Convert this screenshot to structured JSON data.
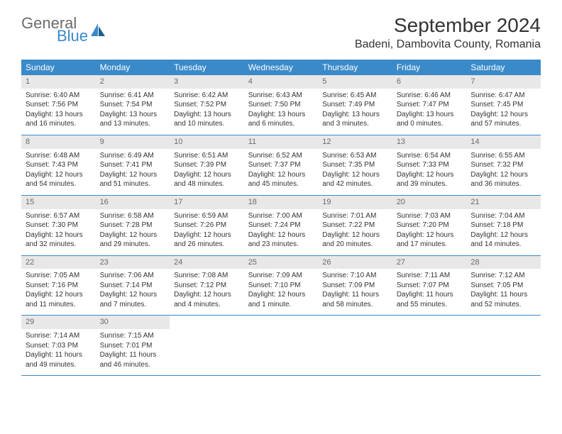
{
  "logo": {
    "text1": "General",
    "text2": "Blue"
  },
  "title": "September 2024",
  "subtitle": "Badeni, Dambovita County, Romania",
  "colors": {
    "header_bg": "#3a8ac9",
    "header_text": "#ffffff",
    "daynum_bg": "#e8e8e8",
    "daynum_text": "#6b6b6b",
    "body_text": "#333333",
    "border": "#3a8ac9"
  },
  "weekdays": [
    "Sunday",
    "Monday",
    "Tuesday",
    "Wednesday",
    "Thursday",
    "Friday",
    "Saturday"
  ],
  "weeks": [
    [
      {
        "n": "1",
        "sr": "6:40 AM",
        "ss": "7:56 PM",
        "dl": "13 hours and 16 minutes."
      },
      {
        "n": "2",
        "sr": "6:41 AM",
        "ss": "7:54 PM",
        "dl": "13 hours and 13 minutes."
      },
      {
        "n": "3",
        "sr": "6:42 AM",
        "ss": "7:52 PM",
        "dl": "13 hours and 10 minutes."
      },
      {
        "n": "4",
        "sr": "6:43 AM",
        "ss": "7:50 PM",
        "dl": "13 hours and 6 minutes."
      },
      {
        "n": "5",
        "sr": "6:45 AM",
        "ss": "7:49 PM",
        "dl": "13 hours and 3 minutes."
      },
      {
        "n": "6",
        "sr": "6:46 AM",
        "ss": "7:47 PM",
        "dl": "13 hours and 0 minutes."
      },
      {
        "n": "7",
        "sr": "6:47 AM",
        "ss": "7:45 PM",
        "dl": "12 hours and 57 minutes."
      }
    ],
    [
      {
        "n": "8",
        "sr": "6:48 AM",
        "ss": "7:43 PM",
        "dl": "12 hours and 54 minutes."
      },
      {
        "n": "9",
        "sr": "6:49 AM",
        "ss": "7:41 PM",
        "dl": "12 hours and 51 minutes."
      },
      {
        "n": "10",
        "sr": "6:51 AM",
        "ss": "7:39 PM",
        "dl": "12 hours and 48 minutes."
      },
      {
        "n": "11",
        "sr": "6:52 AM",
        "ss": "7:37 PM",
        "dl": "12 hours and 45 minutes."
      },
      {
        "n": "12",
        "sr": "6:53 AM",
        "ss": "7:35 PM",
        "dl": "12 hours and 42 minutes."
      },
      {
        "n": "13",
        "sr": "6:54 AM",
        "ss": "7:33 PM",
        "dl": "12 hours and 39 minutes."
      },
      {
        "n": "14",
        "sr": "6:55 AM",
        "ss": "7:32 PM",
        "dl": "12 hours and 36 minutes."
      }
    ],
    [
      {
        "n": "15",
        "sr": "6:57 AM",
        "ss": "7:30 PM",
        "dl": "12 hours and 32 minutes."
      },
      {
        "n": "16",
        "sr": "6:58 AM",
        "ss": "7:28 PM",
        "dl": "12 hours and 29 minutes."
      },
      {
        "n": "17",
        "sr": "6:59 AM",
        "ss": "7:26 PM",
        "dl": "12 hours and 26 minutes."
      },
      {
        "n": "18",
        "sr": "7:00 AM",
        "ss": "7:24 PM",
        "dl": "12 hours and 23 minutes."
      },
      {
        "n": "19",
        "sr": "7:01 AM",
        "ss": "7:22 PM",
        "dl": "12 hours and 20 minutes."
      },
      {
        "n": "20",
        "sr": "7:03 AM",
        "ss": "7:20 PM",
        "dl": "12 hours and 17 minutes."
      },
      {
        "n": "21",
        "sr": "7:04 AM",
        "ss": "7:18 PM",
        "dl": "12 hours and 14 minutes."
      }
    ],
    [
      {
        "n": "22",
        "sr": "7:05 AM",
        "ss": "7:16 PM",
        "dl": "12 hours and 11 minutes."
      },
      {
        "n": "23",
        "sr": "7:06 AM",
        "ss": "7:14 PM",
        "dl": "12 hours and 7 minutes."
      },
      {
        "n": "24",
        "sr": "7:08 AM",
        "ss": "7:12 PM",
        "dl": "12 hours and 4 minutes."
      },
      {
        "n": "25",
        "sr": "7:09 AM",
        "ss": "7:10 PM",
        "dl": "12 hours and 1 minute."
      },
      {
        "n": "26",
        "sr": "7:10 AM",
        "ss": "7:09 PM",
        "dl": "11 hours and 58 minutes."
      },
      {
        "n": "27",
        "sr": "7:11 AM",
        "ss": "7:07 PM",
        "dl": "11 hours and 55 minutes."
      },
      {
        "n": "28",
        "sr": "7:12 AM",
        "ss": "7:05 PM",
        "dl": "11 hours and 52 minutes."
      }
    ],
    [
      {
        "n": "29",
        "sr": "7:14 AM",
        "ss": "7:03 PM",
        "dl": "11 hours and 49 minutes."
      },
      {
        "n": "30",
        "sr": "7:15 AM",
        "ss": "7:01 PM",
        "dl": "11 hours and 46 minutes."
      },
      null,
      null,
      null,
      null,
      null
    ]
  ],
  "labels": {
    "sunrise": "Sunrise:",
    "sunset": "Sunset:",
    "daylight": "Daylight:"
  }
}
